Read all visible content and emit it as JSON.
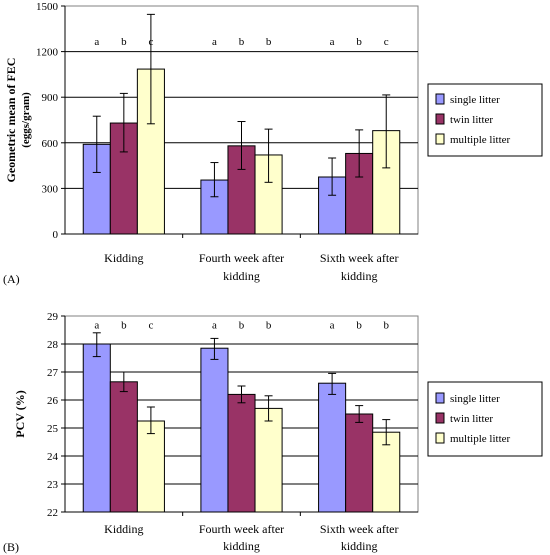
{
  "chart_data": [
    {
      "panel_label": "(A)",
      "type": "bar",
      "title": "",
      "ylabel": "Geometric mean of FEC",
      "ylabel_units": "(eggs/gram)",
      "ylim": [
        0,
        1500
      ],
      "yticks": [
        0,
        300,
        600,
        900,
        1200,
        1500
      ],
      "grid": true,
      "legend_position": "right",
      "categories": [
        [
          "Kidding"
        ],
        [
          "Fourth week after",
          "kidding"
        ],
        [
          "Sixth week after",
          "kidding"
        ]
      ],
      "series": [
        {
          "name": "single litter",
          "color": "#9999ff",
          "values": [
            590,
            355,
            375
          ],
          "error_high": [
            775,
            470,
            500
          ],
          "error_low": [
            405,
            245,
            255
          ]
        },
        {
          "name": "twin litter",
          "color": "#993366",
          "values": [
            730,
            580,
            530
          ],
          "error_high": [
            925,
            740,
            685
          ],
          "error_low": [
            540,
            425,
            375
          ]
        },
        {
          "name": "multiple litter",
          "color": "#ffffcc",
          "values": [
            1085,
            520,
            680
          ],
          "error_high": [
            1445,
            690,
            915
          ],
          "error_low": [
            725,
            340,
            435
          ]
        }
      ],
      "significance_letters": [
        [
          "a",
          "b",
          "c"
        ],
        [
          "a",
          "b",
          "b"
        ],
        [
          "a",
          "b",
          "c"
        ]
      ],
      "letter_y": 1270
    },
    {
      "panel_label": "(B)",
      "type": "bar",
      "title": "",
      "ylabel": "PCV (%)",
      "ylim": [
        22,
        29
      ],
      "yticks": [
        22,
        23,
        24,
        25,
        26,
        27,
        28,
        29
      ],
      "grid": true,
      "legend_position": "right",
      "categories": [
        [
          "Kidding"
        ],
        [
          "Fourth week after",
          "kidding"
        ],
        [
          "Sixth week after",
          "kidding"
        ]
      ],
      "series": [
        {
          "name": "single litter",
          "color": "#9999ff",
          "values": [
            28.0,
            27.85,
            26.6
          ],
          "error_high": [
            28.4,
            28.2,
            26.95
          ],
          "error_low": [
            27.55,
            27.45,
            26.2
          ]
        },
        {
          "name": "twin litter",
          "color": "#993366",
          "values": [
            26.65,
            26.2,
            25.5
          ],
          "error_high": [
            27.0,
            26.5,
            25.8
          ],
          "error_low": [
            26.3,
            25.9,
            25.2
          ]
        },
        {
          "name": "multiple litter",
          "color": "#ffffcc",
          "values": [
            25.25,
            25.7,
            24.85
          ],
          "error_high": [
            25.75,
            26.15,
            25.3
          ],
          "error_low": [
            24.8,
            25.25,
            24.4
          ]
        }
      ],
      "significance_letters": [
        [
          "a",
          "b",
          "c"
        ],
        [
          "a",
          "b",
          "b"
        ],
        [
          "a",
          "b",
          "b"
        ]
      ],
      "letter_y": 28.7
    }
  ]
}
